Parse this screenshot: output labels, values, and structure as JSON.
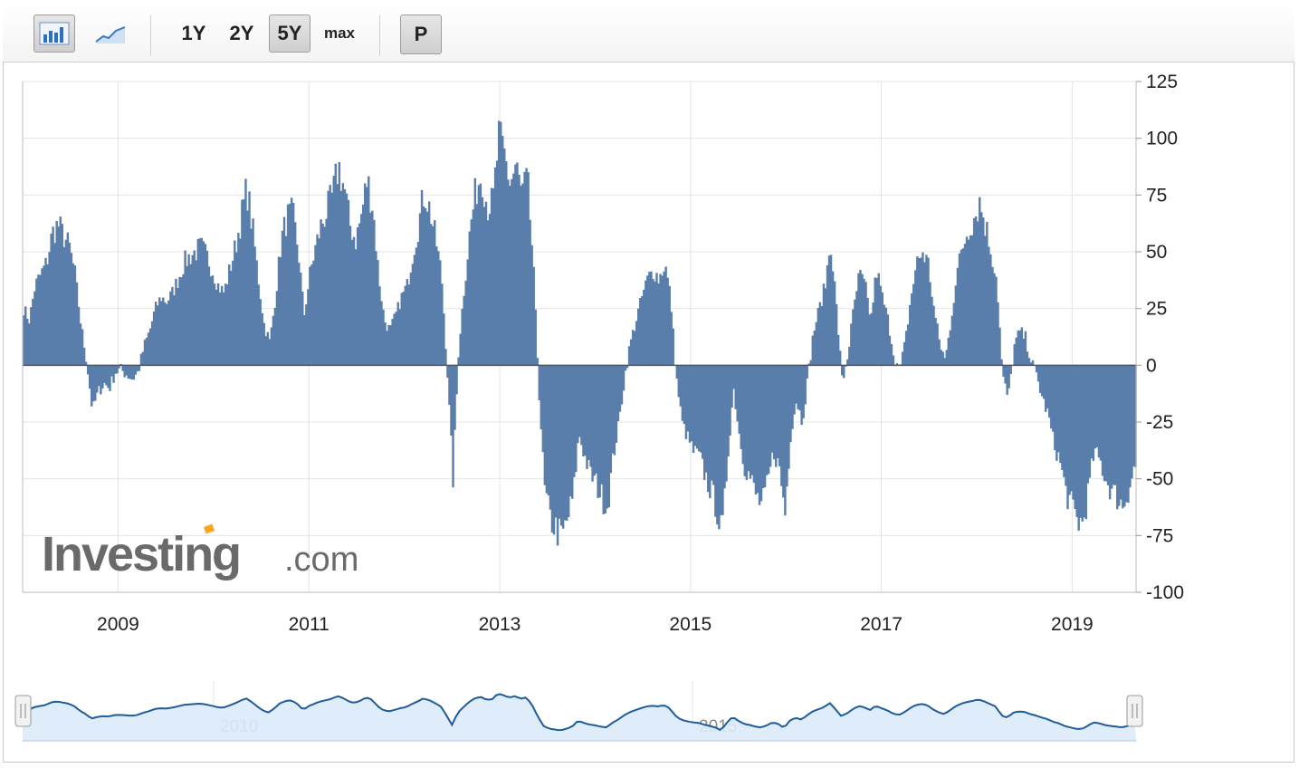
{
  "toolbar": {
    "chart_types": [
      {
        "name": "bar-chart-icon",
        "active": true
      },
      {
        "name": "line-chart-icon",
        "active": false
      }
    ],
    "ranges": [
      {
        "label": "1Y",
        "active": false
      },
      {
        "label": "2Y",
        "active": false
      },
      {
        "label": "5Y",
        "active": true
      },
      {
        "label": "max",
        "active": false
      }
    ],
    "p_label": "P"
  },
  "watermark": {
    "brand": "Investing",
    "suffix": ".com",
    "accent_color": "#f6a623"
  },
  "colors": {
    "bar": "#5a7eab",
    "bar_edge": "#4a6c98",
    "grid": "#e4e4e4",
    "nav_fill": "#dceaf8",
    "nav_line": "#1f5c9a"
  },
  "navigator": {
    "labels": [
      "2010",
      "2015"
    ]
  },
  "chart_data": {
    "type": "bar",
    "title": "",
    "xlabel": "",
    "ylabel": "",
    "ylim": [
      -100,
      125
    ],
    "yticks": [
      "125",
      "100",
      "75",
      "50",
      "25",
      "0",
      "-25",
      "-50",
      "-75",
      "-100"
    ],
    "ytick_values": [
      125,
      100,
      75,
      50,
      25,
      0,
      -25,
      -50,
      -75,
      -100
    ],
    "xticks": [
      "2009",
      "2011",
      "2013",
      "2015",
      "2017",
      "2019"
    ],
    "xtick_values": [
      2009,
      2011,
      2013,
      2015,
      2017,
      2019
    ],
    "xrange": [
      2008.0,
      2019.67
    ],
    "grid": true,
    "legend": "none",
    "series": [
      {
        "points": [
          [
            2008.0,
            25
          ],
          [
            2008.06,
            20
          ],
          [
            2008.12,
            35
          ],
          [
            2008.18,
            40
          ],
          [
            2008.24,
            45
          ],
          [
            2008.3,
            58
          ],
          [
            2008.36,
            62
          ],
          [
            2008.42,
            57
          ],
          [
            2008.48,
            52
          ],
          [
            2008.54,
            40
          ],
          [
            2008.6,
            18
          ],
          [
            2008.66,
            2
          ],
          [
            2008.72,
            -20
          ],
          [
            2008.78,
            -12
          ],
          [
            2008.84,
            -8
          ],
          [
            2008.9,
            -10
          ],
          [
            2008.96,
            -3
          ],
          [
            2009.02,
            -2
          ],
          [
            2009.08,
            -4
          ],
          [
            2009.14,
            -6
          ],
          [
            2009.2,
            -3
          ],
          [
            2009.26,
            8
          ],
          [
            2009.32,
            15
          ],
          [
            2009.38,
            25
          ],
          [
            2009.44,
            30
          ],
          [
            2009.5,
            28
          ],
          [
            2009.56,
            32
          ],
          [
            2009.62,
            38
          ],
          [
            2009.68,
            45
          ],
          [
            2009.74,
            48
          ],
          [
            2009.8,
            50
          ],
          [
            2009.86,
            52
          ],
          [
            2009.92,
            48
          ],
          [
            2009.98,
            42
          ],
          [
            2010.04,
            35
          ],
          [
            2010.1,
            32
          ],
          [
            2010.16,
            42
          ],
          [
            2010.22,
            52
          ],
          [
            2010.28,
            65
          ],
          [
            2010.34,
            78
          ],
          [
            2010.4,
            60
          ],
          [
            2010.46,
            38
          ],
          [
            2010.52,
            18
          ],
          [
            2010.58,
            10
          ],
          [
            2010.64,
            30
          ],
          [
            2010.7,
            55
          ],
          [
            2010.76,
            65
          ],
          [
            2010.82,
            67
          ],
          [
            2010.88,
            50
          ],
          [
            2010.94,
            22
          ],
          [
            2011.0,
            40
          ],
          [
            2011.06,
            52
          ],
          [
            2011.12,
            62
          ],
          [
            2011.18,
            68
          ],
          [
            2011.24,
            75
          ],
          [
            2011.3,
            88
          ],
          [
            2011.36,
            78
          ],
          [
            2011.42,
            62
          ],
          [
            2011.48,
            55
          ],
          [
            2011.54,
            66
          ],
          [
            2011.6,
            82
          ],
          [
            2011.66,
            70
          ],
          [
            2011.72,
            40
          ],
          [
            2011.78,
            20
          ],
          [
            2011.84,
            15
          ],
          [
            2011.9,
            22
          ],
          [
            2011.96,
            30
          ],
          [
            2012.02,
            35
          ],
          [
            2012.08,
            50
          ],
          [
            2012.14,
            62
          ],
          [
            2012.2,
            77
          ],
          [
            2012.26,
            68
          ],
          [
            2012.32,
            55
          ],
          [
            2012.38,
            40
          ],
          [
            2012.44,
            -2
          ],
          [
            2012.5,
            -50
          ],
          [
            2012.56,
            8
          ],
          [
            2012.62,
            35
          ],
          [
            2012.68,
            60
          ],
          [
            2012.74,
            77
          ],
          [
            2012.8,
            85
          ],
          [
            2012.86,
            70
          ],
          [
            2012.92,
            72
          ],
          [
            2012.98,
            100
          ],
          [
            2013.04,
            92
          ],
          [
            2013.1,
            80
          ],
          [
            2013.16,
            88
          ],
          [
            2013.22,
            75
          ],
          [
            2013.28,
            82
          ],
          [
            2013.34,
            45
          ],
          [
            2013.4,
            -10
          ],
          [
            2013.46,
            -55
          ],
          [
            2013.52,
            -68
          ],
          [
            2013.58,
            -72
          ],
          [
            2013.64,
            -76
          ],
          [
            2013.7,
            -68
          ],
          [
            2013.76,
            -58
          ],
          [
            2013.82,
            -30
          ],
          [
            2013.88,
            -40
          ],
          [
            2013.94,
            -48
          ],
          [
            2014.0,
            -52
          ],
          [
            2014.06,
            -58
          ],
          [
            2014.12,
            -62
          ],
          [
            2014.18,
            -40
          ],
          [
            2014.24,
            -25
          ],
          [
            2014.3,
            -5
          ],
          [
            2014.36,
            10
          ],
          [
            2014.42,
            20
          ],
          [
            2014.48,
            30
          ],
          [
            2014.54,
            38
          ],
          [
            2014.6,
            42
          ],
          [
            2014.66,
            38
          ],
          [
            2014.72,
            45
          ],
          [
            2014.78,
            30
          ],
          [
            2014.84,
            -5
          ],
          [
            2014.9,
            -25
          ],
          [
            2014.96,
            -32
          ],
          [
            2015.02,
            -38
          ],
          [
            2015.08,
            -40
          ],
          [
            2015.14,
            -48
          ],
          [
            2015.2,
            -55
          ],
          [
            2015.26,
            -62
          ],
          [
            2015.32,
            -76
          ],
          [
            2015.38,
            -40
          ],
          [
            2015.44,
            -10
          ],
          [
            2015.5,
            -30
          ],
          [
            2015.56,
            -45
          ],
          [
            2015.62,
            -50
          ],
          [
            2015.68,
            -58
          ],
          [
            2015.74,
            -62
          ],
          [
            2015.8,
            -52
          ],
          [
            2015.86,
            -38
          ],
          [
            2015.92,
            -45
          ],
          [
            2015.98,
            -65
          ],
          [
            2016.04,
            -30
          ],
          [
            2016.1,
            -15
          ],
          [
            2016.16,
            -25
          ],
          [
            2016.22,
            -5
          ],
          [
            2016.28,
            15
          ],
          [
            2016.34,
            25
          ],
          [
            2016.4,
            35
          ],
          [
            2016.46,
            55
          ],
          [
            2016.52,
            25
          ],
          [
            2016.58,
            -8
          ],
          [
            2016.64,
            5
          ],
          [
            2016.7,
            25
          ],
          [
            2016.76,
            40
          ],
          [
            2016.82,
            35
          ],
          [
            2016.88,
            20
          ],
          [
            2016.94,
            42
          ],
          [
            2017.0,
            30
          ],
          [
            2017.06,
            20
          ],
          [
            2017.12,
            5
          ],
          [
            2017.18,
            -3
          ],
          [
            2017.24,
            10
          ],
          [
            2017.3,
            30
          ],
          [
            2017.36,
            45
          ],
          [
            2017.42,
            50
          ],
          [
            2017.48,
            45
          ],
          [
            2017.54,
            25
          ],
          [
            2017.6,
            10
          ],
          [
            2017.66,
            2
          ],
          [
            2017.72,
            20
          ],
          [
            2017.78,
            40
          ],
          [
            2017.84,
            52
          ],
          [
            2017.9,
            60
          ],
          [
            2017.96,
            65
          ],
          [
            2018.02,
            72
          ],
          [
            2018.08,
            62
          ],
          [
            2018.14,
            50
          ],
          [
            2018.2,
            38
          ],
          [
            2018.26,
            -5
          ],
          [
            2018.32,
            -15
          ],
          [
            2018.38,
            8
          ],
          [
            2018.44,
            15
          ],
          [
            2018.5,
            12
          ],
          [
            2018.56,
            2
          ],
          [
            2018.62,
            -5
          ],
          [
            2018.68,
            -15
          ],
          [
            2018.74,
            -22
          ],
          [
            2018.8,
            -35
          ],
          [
            2018.86,
            -42
          ],
          [
            2018.92,
            -55
          ],
          [
            2018.98,
            -62
          ],
          [
            2019.04,
            -68
          ],
          [
            2019.1,
            -70
          ],
          [
            2019.16,
            -55
          ],
          [
            2019.22,
            -38
          ],
          [
            2019.28,
            -42
          ],
          [
            2019.34,
            -50
          ],
          [
            2019.4,
            -55
          ],
          [
            2019.46,
            -58
          ],
          [
            2019.52,
            -62
          ],
          [
            2019.58,
            -55
          ],
          [
            2019.64,
            -45
          ]
        ]
      }
    ]
  }
}
